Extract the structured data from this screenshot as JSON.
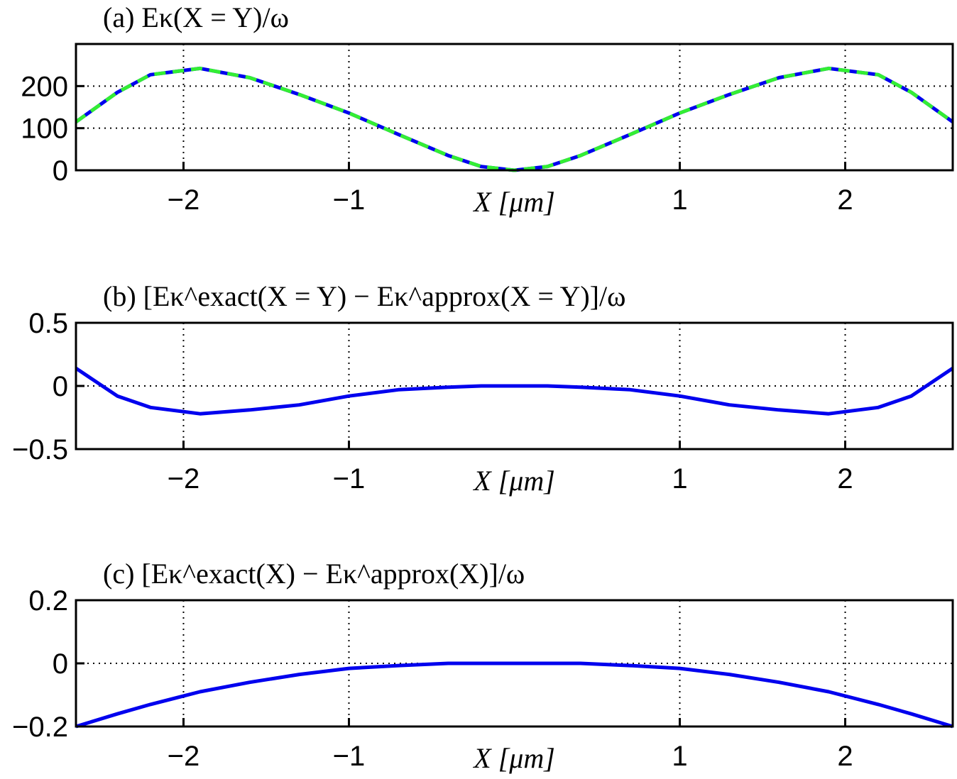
{
  "chart_data": [
    {
      "type": "line",
      "title": "(a) Eκ(X = Y)/ω",
      "xlabel": "X [μm]",
      "x": [
        -2.65,
        -2.4,
        -2.2,
        -1.9,
        -1.6,
        -1.3,
        -1.0,
        -0.7,
        -0.4,
        -0.2,
        0,
        0.2,
        0.4,
        0.7,
        1.0,
        1.3,
        1.6,
        1.9,
        2.2,
        2.4,
        2.65
      ],
      "series": [
        {
          "color": "#0000ee",
          "dashed": false,
          "values": [
            115,
            185,
            227,
            242,
            220,
            180,
            136,
            85,
            35,
            9,
            0,
            9,
            35,
            85,
            136,
            180,
            220,
            242,
            227,
            185,
            115
          ]
        },
        {
          "color": "#33ee33",
          "dashed": true,
          "values": [
            115,
            185,
            227,
            242,
            220,
            180,
            136,
            85,
            35,
            9,
            0,
            9,
            35,
            85,
            136,
            180,
            220,
            242,
            227,
            185,
            115
          ]
        }
      ],
      "xlim": [
        -2.65,
        2.65
      ],
      "xticks": [
        {
          "value": -2,
          "label": "−2"
        },
        {
          "value": -1,
          "label": "−1"
        },
        1,
        2
      ],
      "ylim": [
        0,
        300
      ],
      "yticks": [
        0,
        100,
        200
      ],
      "grid": true
    },
    {
      "type": "line",
      "title": "(b) [Eκ^exact(X = Y) − Eκ^approx(X = Y)]/ω",
      "xlabel": "X [μm]",
      "x": [
        -2.65,
        -2.4,
        -2.2,
        -1.9,
        -1.6,
        -1.3,
        -1.0,
        -0.7,
        -0.4,
        -0.2,
        0,
        0.2,
        0.4,
        0.7,
        1.0,
        1.3,
        1.6,
        1.9,
        2.2,
        2.4,
        2.65
      ],
      "series": [
        {
          "color": "#0000ee",
          "dashed": false,
          "values": [
            0.14,
            -0.08,
            -0.17,
            -0.22,
            -0.19,
            -0.15,
            -0.08,
            -0.03,
            -0.01,
            0,
            0,
            0,
            -0.01,
            -0.03,
            -0.08,
            -0.15,
            -0.19,
            -0.22,
            -0.17,
            -0.08,
            0.14
          ]
        }
      ],
      "xlim": [
        -2.65,
        2.65
      ],
      "xticks": [
        {
          "value": -2,
          "label": "−2"
        },
        {
          "value": -1,
          "label": "−1"
        },
        1,
        2
      ],
      "ylim": [
        -0.5,
        0.5
      ],
      "yticks": [
        {
          "value": -0.5,
          "label": "−0.5"
        },
        0,
        0.5
      ],
      "grid": true
    },
    {
      "type": "line",
      "title": "(c) [Eκ^exact(X) − Eκ^approx(X)]/ω",
      "xlabel": "X [μm]",
      "x": [
        -2.65,
        -2.4,
        -2.2,
        -1.9,
        -1.6,
        -1.3,
        -1.0,
        -0.7,
        -0.4,
        -0.2,
        0,
        0.2,
        0.4,
        0.7,
        1.0,
        1.3,
        1.6,
        1.9,
        2.2,
        2.4,
        2.65
      ],
      "series": [
        {
          "color": "#0000ee",
          "dashed": false,
          "values": [
            -0.2,
            -0.16,
            -0.13,
            -0.09,
            -0.06,
            -0.035,
            -0.016,
            -0.007,
            0,
            0,
            0,
            0,
            0,
            -0.007,
            -0.016,
            -0.035,
            -0.06,
            -0.09,
            -0.13,
            -0.16,
            -0.2
          ]
        }
      ],
      "xlim": [
        -2.65,
        2.65
      ],
      "xticks": [
        {
          "value": -2,
          "label": "−2"
        },
        {
          "value": -1,
          "label": "−1"
        },
        1,
        2
      ],
      "ylim": [
        -0.2,
        0.2
      ],
      "yticks": [
        {
          "value": -0.2,
          "label": "−0.2"
        },
        0,
        0.2
      ],
      "grid": true
    }
  ]
}
